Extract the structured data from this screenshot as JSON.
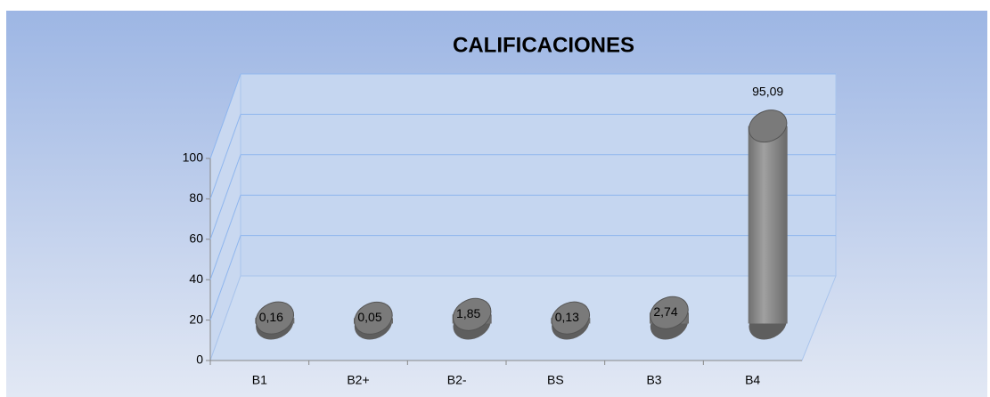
{
  "chart_data": {
    "type": "bar",
    "title": "CALIFICACIONES",
    "categories": [
      "B1",
      "B2+",
      "B2-",
      "BS",
      "B3",
      "B4"
    ],
    "values": [
      0.16,
      0.05,
      1.85,
      0.13,
      2.74,
      95.09
    ],
    "value_labels": [
      "0,16",
      "0,05",
      "1,85",
      "0,13",
      "2,74",
      "95,09"
    ],
    "color": "#7a7a7a",
    "ylim": [
      0,
      100
    ],
    "yticks": [
      0,
      20,
      40,
      60,
      80,
      100
    ],
    "grid": true
  }
}
